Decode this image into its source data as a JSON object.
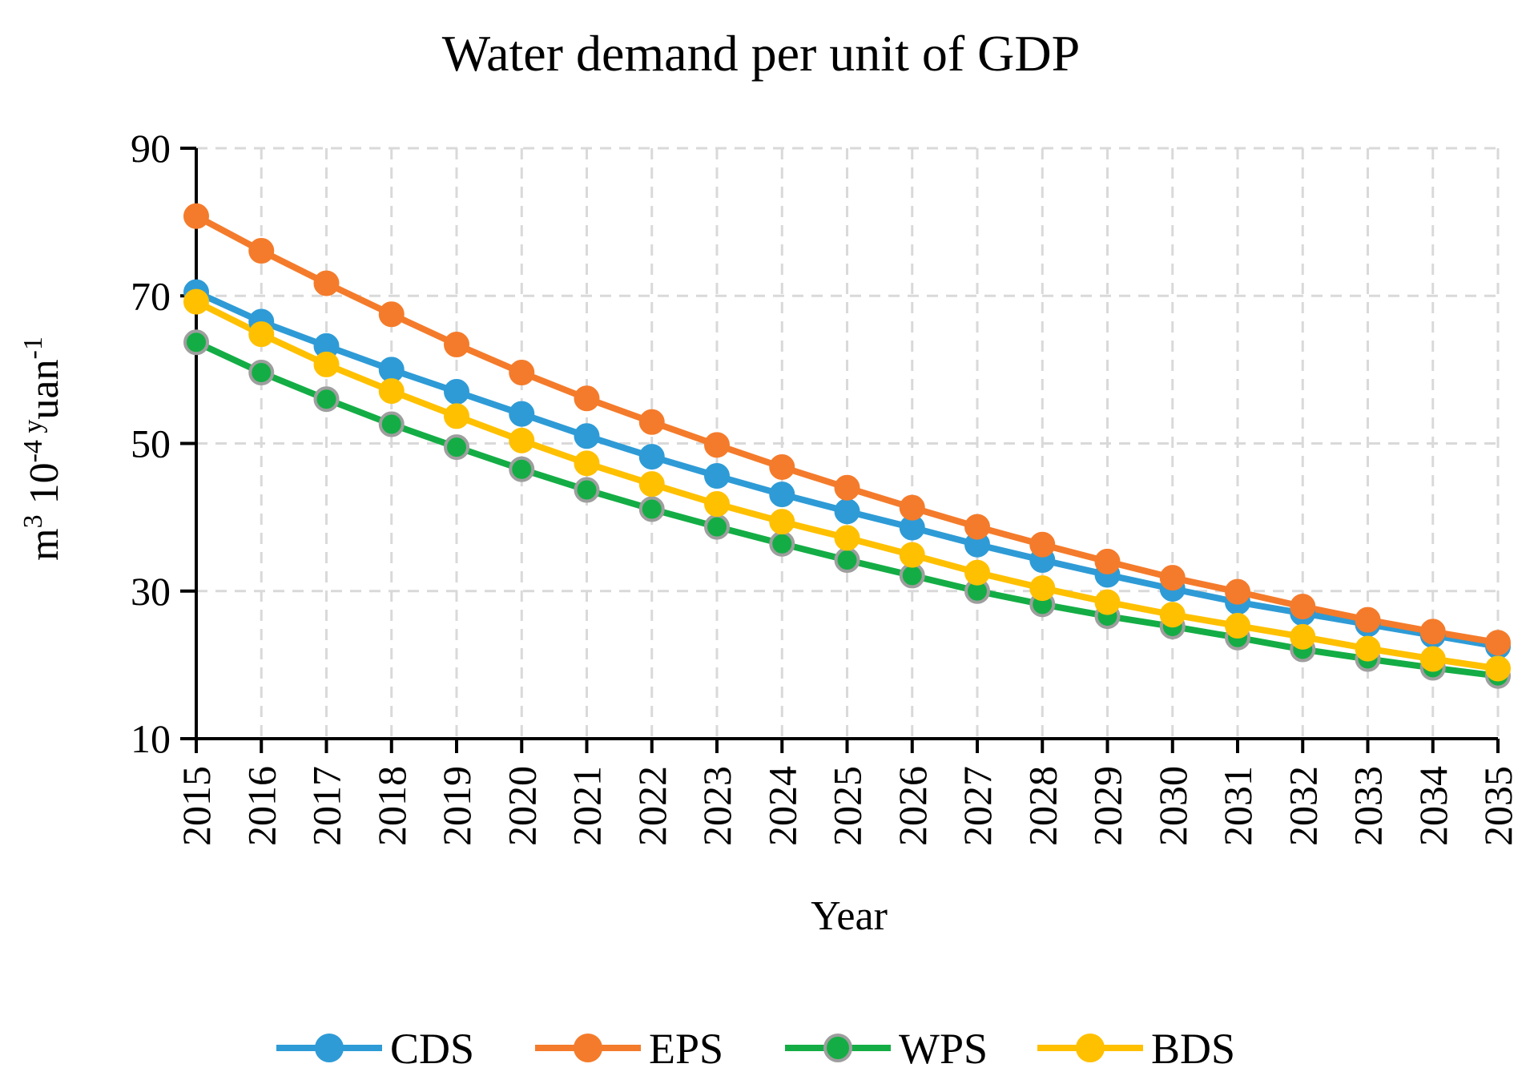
{
  "chart_data": {
    "type": "line",
    "title": "Water demand per unit of GDP",
    "xlabel": "Year",
    "ylabel": {
      "m": "m",
      "sup3": "3",
      "ten": " 10",
      "supm4": "-4",
      "y": " y",
      "uan": "uan",
      "supm1": "-1"
    },
    "ylim": [
      10,
      90
    ],
    "yticks": [
      "10",
      "30",
      "50",
      "70",
      "90"
    ],
    "categories": [
      "2015",
      "2016",
      "2017",
      "2018",
      "2019",
      "2020",
      "2021",
      "2022",
      "2023",
      "2024",
      "2025",
      "2026",
      "2027",
      "2028",
      "2029",
      "2030",
      "2031",
      "2032",
      "2033",
      "2034",
      "2035"
    ],
    "series": [
      {
        "name": "CDS",
        "color": "#2E9BD6",
        "marker_stroke": "#2E9BD6",
        "values": [
          70.5,
          66.5,
          63.2,
          60.0,
          57.0,
          54.0,
          51.0,
          48.2,
          45.6,
          43.1,
          40.8,
          38.6,
          36.3,
          34.2,
          32.2,
          30.3,
          28.5,
          27.0,
          25.5,
          24.0,
          22.5
        ]
      },
      {
        "name": "EPS",
        "color": "#F47B2B",
        "marker_stroke": "#F47B2B",
        "values": [
          80.8,
          76.1,
          71.7,
          67.5,
          63.4,
          59.6,
          56.1,
          52.9,
          49.8,
          46.8,
          44.0,
          41.3,
          38.7,
          36.3,
          34.0,
          31.8,
          29.9,
          27.9,
          26.1,
          24.5,
          23.0
        ]
      },
      {
        "name": "WPS",
        "color": "#14AD45",
        "marker_stroke": "#9E9E9E",
        "values": [
          63.7,
          59.6,
          56.0,
          52.6,
          49.5,
          46.5,
          43.7,
          41.1,
          38.7,
          36.4,
          34.2,
          32.1,
          30.0,
          28.2,
          26.6,
          25.2,
          23.7,
          22.1,
          20.8,
          19.6,
          18.5
        ]
      },
      {
        "name": "BDS",
        "color": "#FFC000",
        "marker_stroke": "#FFC000",
        "values": [
          69.2,
          64.8,
          60.7,
          57.1,
          53.7,
          50.4,
          47.3,
          44.5,
          41.8,
          39.4,
          37.2,
          34.9,
          32.5,
          30.4,
          28.5,
          26.8,
          25.3,
          23.8,
          22.2,
          20.8,
          19.5
        ]
      }
    ],
    "legend_position": "bottom"
  }
}
